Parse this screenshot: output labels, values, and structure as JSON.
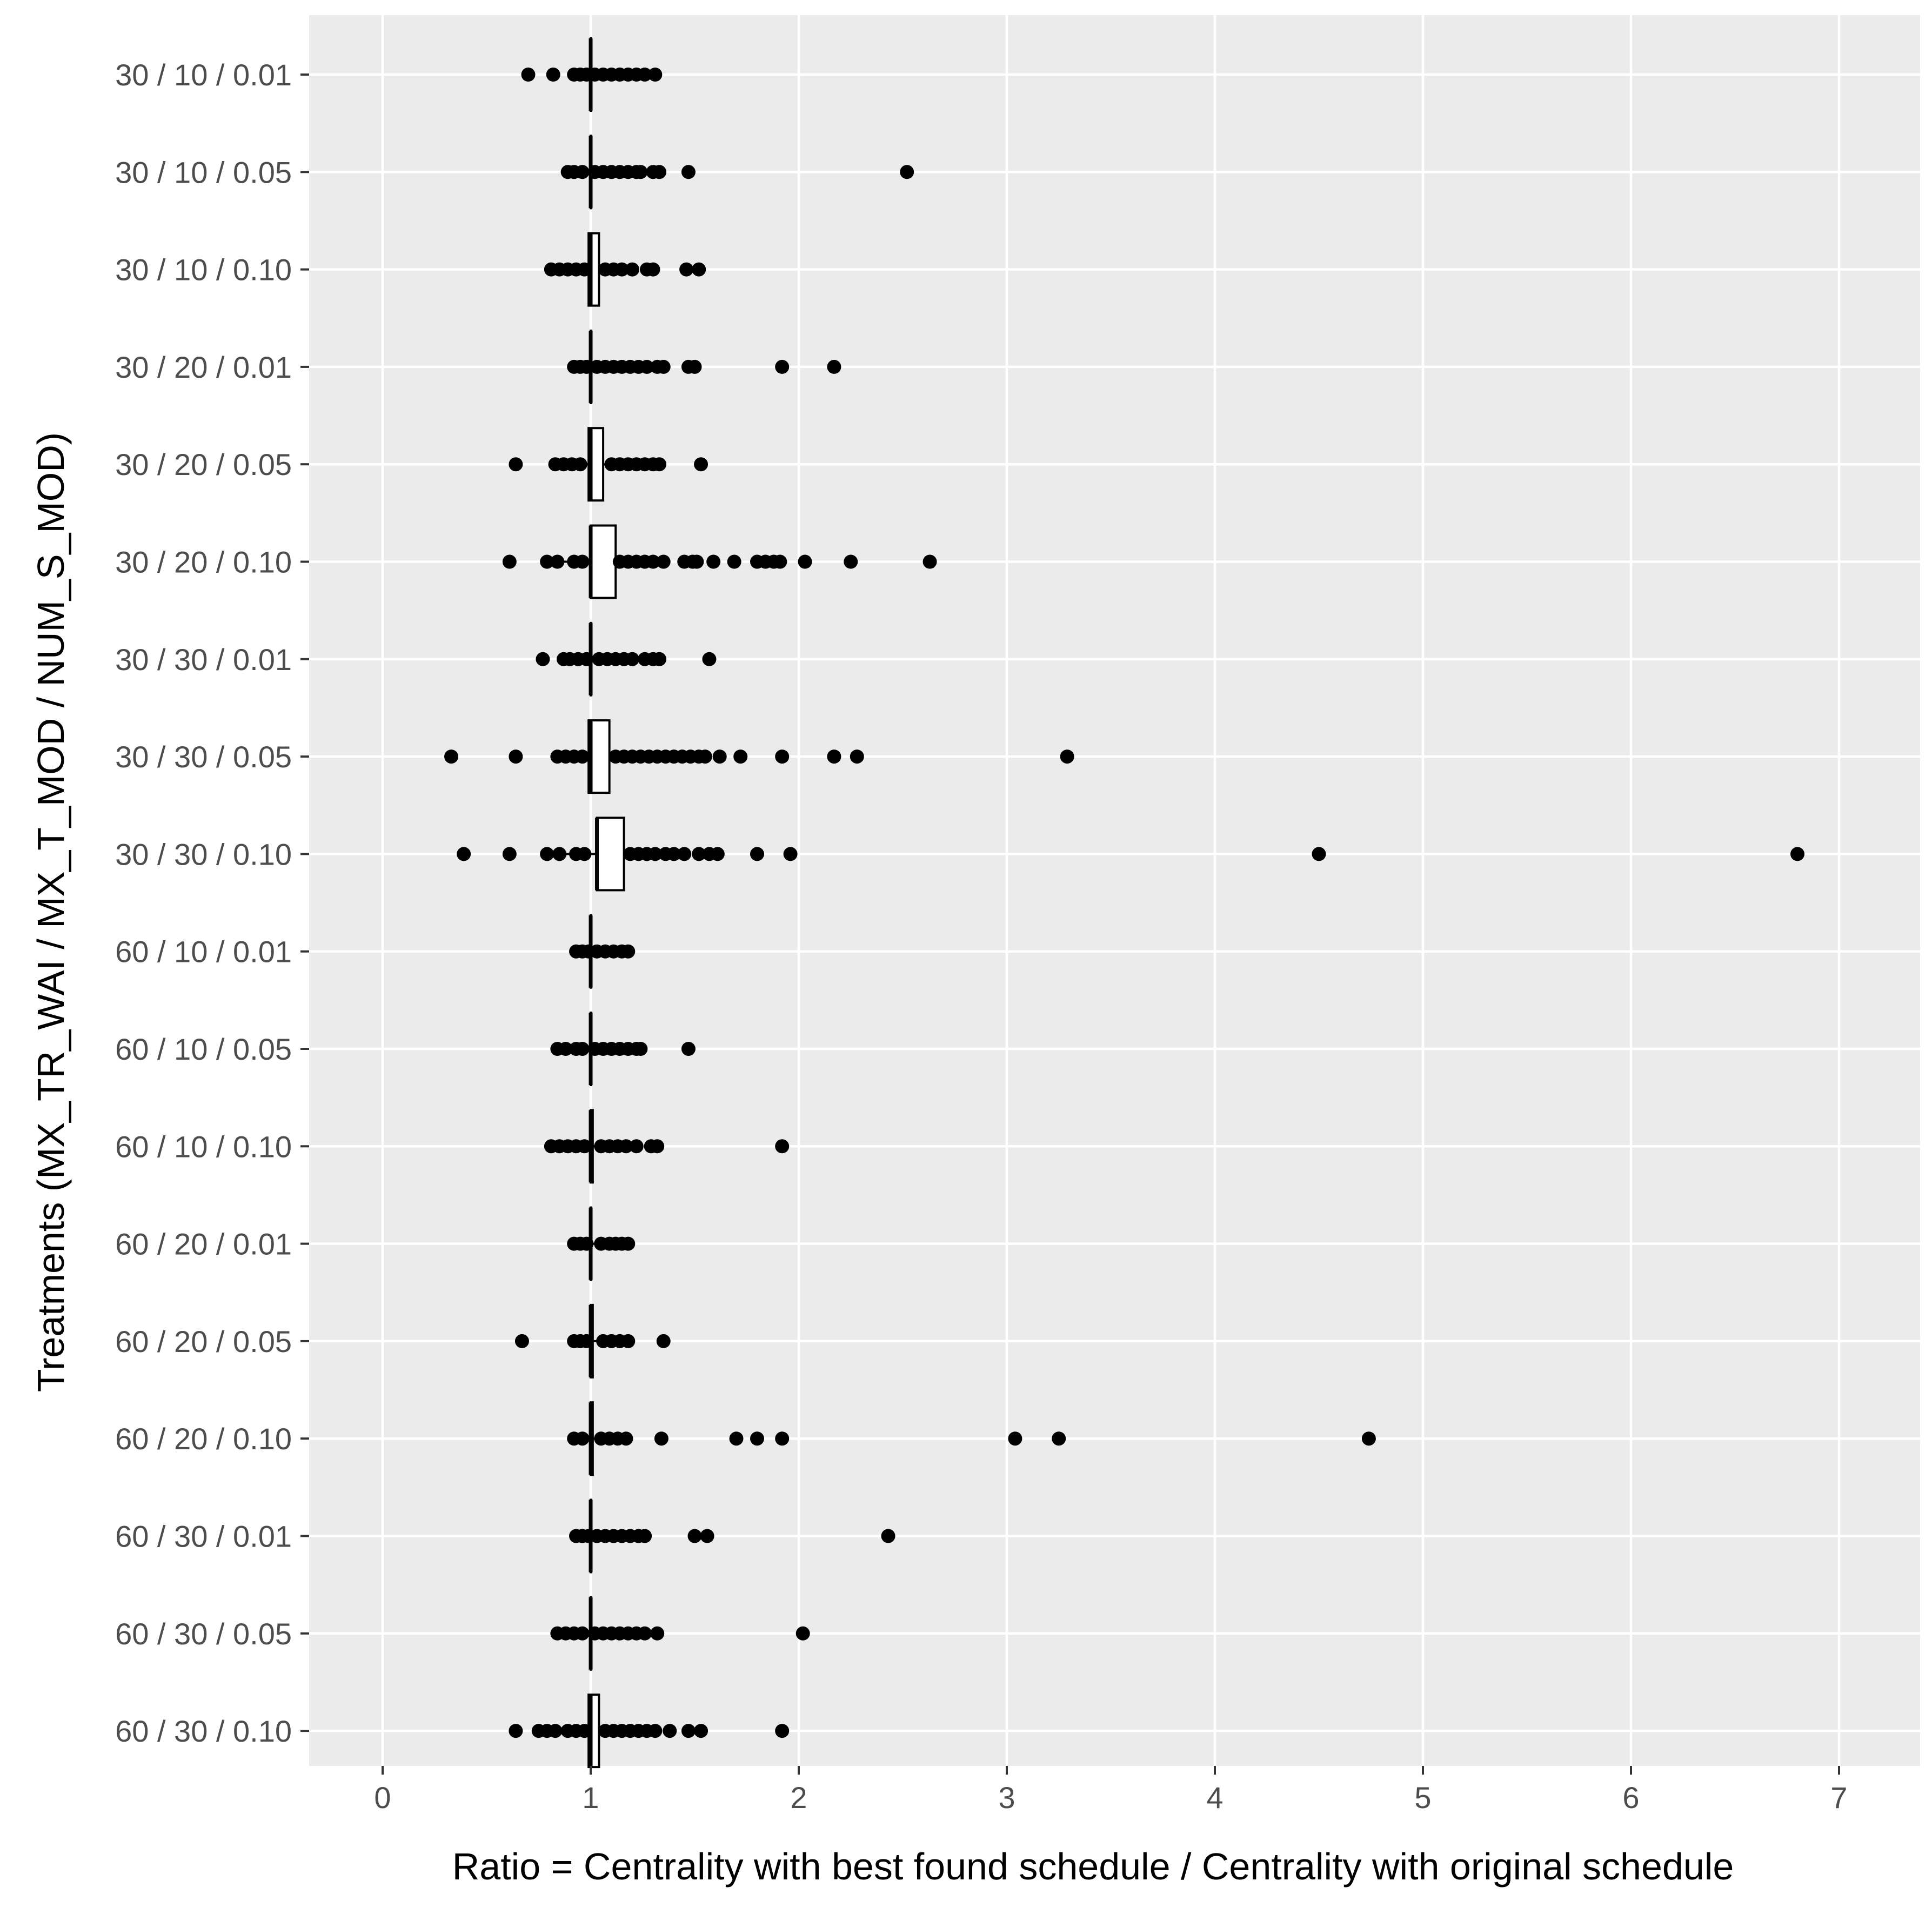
{
  "chart_data": {
    "type": "boxplot",
    "orientation": "horizontal",
    "xlabel": "Ratio = Centrality with best found schedule / Centrality with original schedule",
    "ylabel": "Treatments (MX_TR_WAI / MX_T_MOD / NUM_S_MOD)",
    "xlim": [
      -0.35,
      7.35
    ],
    "x_ticks": [
      0,
      1,
      2,
      3,
      4,
      5,
      6,
      7
    ],
    "x_tick_labels": [
      "0",
      "1",
      "2",
      "3",
      "4",
      "5",
      "6",
      "7"
    ],
    "grid": true,
    "colors": {
      "panel": "#ebebeb",
      "grid": "#ffffff",
      "points": "#000000",
      "box_fill": "#ffffff",
      "box_stroke": "#000000",
      "tick_text": "#4d4d4d"
    },
    "categories": [
      "30 / 10 / 0.01",
      "30 / 10 / 0.05",
      "30 / 10 / 0.10",
      "30 / 20 / 0.01",
      "30 / 20 / 0.05",
      "30 / 20 / 0.10",
      "30 / 30 / 0.01",
      "30 / 30 / 0.05",
      "30 / 30 / 0.10",
      "60 / 10 / 0.01",
      "60 / 10 / 0.05",
      "60 / 10 / 0.10",
      "60 / 20 / 0.01",
      "60 / 20 / 0.05",
      "60 / 20 / 0.10",
      "60 / 30 / 0.01",
      "60 / 30 / 0.05",
      "60 / 30 / 0.10"
    ],
    "boxes": [
      {
        "q1": 1.0,
        "median": 1.0,
        "q3": 1.0,
        "whisker_low": 0.93,
        "whisker_high": 1.05,
        "points": [
          0.7,
          0.82,
          0.92,
          0.95,
          0.98,
          1.02,
          1.06,
          1.1,
          1.14,
          1.18,
          1.22,
          1.26,
          1.31
        ]
      },
      {
        "q1": 1.0,
        "median": 1.0,
        "q3": 1.0,
        "whisker_low": 0.93,
        "whisker_high": 1.05,
        "points": [
          0.89,
          0.92,
          0.96,
          1.02,
          1.06,
          1.1,
          1.14,
          1.18,
          1.22,
          1.24,
          1.3,
          1.33,
          1.47,
          2.52
        ]
      },
      {
        "q1": 0.99,
        "median": 1.0,
        "q3": 1.04,
        "whisker_low": 0.93,
        "whisker_high": 1.1,
        "points": [
          0.81,
          0.85,
          0.89,
          0.93,
          0.97,
          1.07,
          1.11,
          1.15,
          1.2,
          1.27,
          1.3,
          1.46,
          1.52
        ]
      },
      {
        "q1": 1.0,
        "median": 1.0,
        "q3": 1.0,
        "whisker_low": 0.93,
        "whisker_high": 1.05,
        "points": [
          0.92,
          0.95,
          0.98,
          1.03,
          1.07,
          1.11,
          1.15,
          1.19,
          1.23,
          1.27,
          1.32,
          1.35,
          1.47,
          1.5,
          1.92,
          2.17
        ]
      },
      {
        "q1": 0.99,
        "median": 1.0,
        "q3": 1.06,
        "whisker_low": 0.9,
        "whisker_high": 1.15,
        "points": [
          0.64,
          0.83,
          0.87,
          0.91,
          0.95,
          1.1,
          1.14,
          1.18,
          1.22,
          1.26,
          1.3,
          1.33,
          1.53
        ]
      },
      {
        "q1": 1.0,
        "median": 1.0,
        "q3": 1.12,
        "whisker_low": 0.85,
        "whisker_high": 1.28,
        "points": [
          0.61,
          0.79,
          0.84,
          0.92,
          0.96,
          1.14,
          1.18,
          1.22,
          1.26,
          1.3,
          1.35,
          1.45,
          1.49,
          1.51,
          1.59,
          1.69,
          1.8,
          1.84,
          1.88,
          1.91,
          2.03,
          2.25,
          2.63
        ]
      },
      {
        "q1": 1.0,
        "median": 1.0,
        "q3": 1.0,
        "whisker_low": 0.9,
        "whisker_high": 1.1,
        "points": [
          0.77,
          0.87,
          0.9,
          0.94,
          0.98,
          1.04,
          1.08,
          1.12,
          1.16,
          1.2,
          1.26,
          1.3,
          1.33,
          1.57
        ]
      },
      {
        "q1": 0.99,
        "median": 1.0,
        "q3": 1.09,
        "whisker_low": 0.85,
        "whisker_high": 1.25,
        "points": [
          0.33,
          0.64,
          0.84,
          0.88,
          0.92,
          0.96,
          1.12,
          1.16,
          1.2,
          1.24,
          1.28,
          1.32,
          1.36,
          1.4,
          1.44,
          1.48,
          1.52,
          1.55,
          1.62,
          1.72,
          1.92,
          2.17,
          2.28,
          3.29
        ]
      },
      {
        "q1": 1.03,
        "median": 1.03,
        "q3": 1.16,
        "whisker_low": 0.86,
        "whisker_high": 1.35,
        "points": [
          0.39,
          0.61,
          0.79,
          0.85,
          0.93,
          0.97,
          1.19,
          1.23,
          1.27,
          1.31,
          1.36,
          1.4,
          1.45,
          1.52,
          1.57,
          1.61,
          1.8,
          1.96,
          4.5,
          6.8
        ]
      },
      {
        "q1": 1.0,
        "median": 1.0,
        "q3": 1.0,
        "whisker_low": 0.95,
        "whisker_high": 1.05,
        "points": [
          0.93,
          0.96,
          0.99,
          1.03,
          1.07,
          1.11,
          1.15,
          1.18
        ]
      },
      {
        "q1": 1.0,
        "median": 1.0,
        "q3": 1.0,
        "whisker_low": 0.93,
        "whisker_high": 1.05,
        "points": [
          0.84,
          0.88,
          0.93,
          0.96,
          1.02,
          1.06,
          1.1,
          1.14,
          1.18,
          1.22,
          1.24,
          1.47
        ]
      },
      {
        "q1": 1.0,
        "median": 1.0,
        "q3": 1.01,
        "whisker_low": 0.93,
        "whisker_high": 1.07,
        "points": [
          0.81,
          0.85,
          0.89,
          0.93,
          0.97,
          1.05,
          1.09,
          1.13,
          1.17,
          1.22,
          1.29,
          1.32,
          1.92
        ]
      },
      {
        "q1": 1.0,
        "median": 1.0,
        "q3": 1.0,
        "whisker_low": 0.96,
        "whisker_high": 1.04,
        "points": [
          0.92,
          0.95,
          0.98,
          1.05,
          1.09,
          1.12,
          1.15,
          1.18
        ]
      },
      {
        "q1": 1.0,
        "median": 1.0,
        "q3": 1.01,
        "whisker_low": 0.96,
        "whisker_high": 1.05,
        "points": [
          0.67,
          0.92,
          0.95,
          0.98,
          1.06,
          1.1,
          1.14,
          1.18,
          1.35
        ]
      },
      {
        "q1": 1.0,
        "median": 1.0,
        "q3": 1.01,
        "whisker_low": 0.93,
        "whisker_high": 1.07,
        "points": [
          0.92,
          0.96,
          1.05,
          1.09,
          1.13,
          1.17,
          1.34,
          1.7,
          1.8,
          1.92,
          3.04,
          3.25,
          4.74
        ]
      },
      {
        "q1": 1.0,
        "median": 1.0,
        "q3": 1.0,
        "whisker_low": 0.95,
        "whisker_high": 1.05,
        "points": [
          0.93,
          0.96,
          0.99,
          1.03,
          1.07,
          1.11,
          1.15,
          1.19,
          1.23,
          1.26,
          1.5,
          1.56,
          2.43
        ]
      },
      {
        "q1": 1.0,
        "median": 1.0,
        "q3": 1.0,
        "whisker_low": 0.93,
        "whisker_high": 1.05,
        "points": [
          0.84,
          0.88,
          0.92,
          0.96,
          1.02,
          1.06,
          1.1,
          1.14,
          1.18,
          1.22,
          1.26,
          1.32,
          2.02
        ]
      },
      {
        "q1": 0.99,
        "median": 1.0,
        "q3": 1.04,
        "whisker_low": 0.87,
        "whisker_high": 1.13,
        "points": [
          0.64,
          0.75,
          0.79,
          0.83,
          0.89,
          0.93,
          0.97,
          1.07,
          1.11,
          1.15,
          1.19,
          1.23,
          1.27,
          1.31,
          1.38,
          1.47,
          1.53,
          1.92
        ]
      }
    ]
  }
}
